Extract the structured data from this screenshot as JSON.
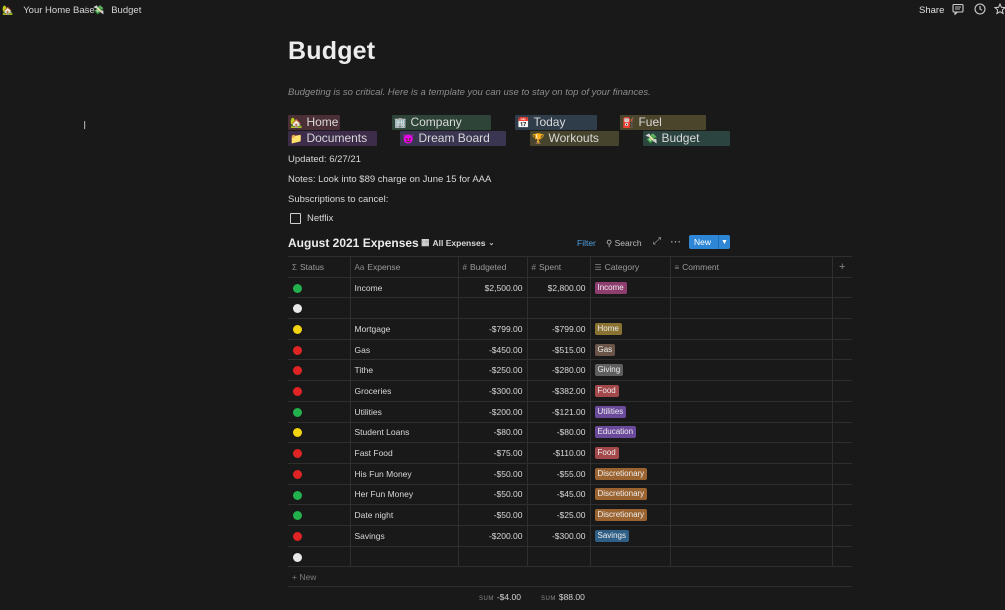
{
  "breadcrumb": {
    "home": {
      "icon": "🏡",
      "label": "Your Home Base"
    },
    "separator": "/",
    "current": {
      "icon": "💸",
      "label": "Budget"
    }
  },
  "topbar": {
    "share_label": "Share"
  },
  "page": {
    "title": "Budget",
    "description": "Budgeting is so critical. Here is a template you can use to stay on top of your finances.",
    "nav_links": [
      {
        "icon": "🏡",
        "label": "Home",
        "color": "#4a3036"
      },
      {
        "icon": "🏢",
        "label": "Company",
        "color": "#2e4438"
      },
      {
        "icon": "📅",
        "label": "Today",
        "color": "#2f3d4b"
      },
      {
        "icon": "⛽",
        "label": "Fuel",
        "color": "#4a452b"
      },
      {
        "icon": "📁",
        "label": "Documents",
        "color": "#3e2d4a"
      },
      {
        "icon": "😈",
        "label": "Dream Board",
        "color": "#3a3550"
      },
      {
        "icon": "🏆",
        "label": "Workouts",
        "color": "#46442c"
      },
      {
        "icon": "💸",
        "label": "Budget",
        "color": "#2c4440"
      }
    ],
    "updated": "Updated: 6/27/21",
    "notes": "Notes: Look into $89 charge on June 15 for AAA",
    "subscriptions_heading": "Subscriptions to cancel:",
    "todo_item": "Netflix"
  },
  "database": {
    "title": "August 2021 Expenses",
    "view_label": "All Expenses",
    "filter_label": "Filter",
    "search_label": "Search",
    "new_label": "New",
    "columns": {
      "status": "Status",
      "expense": "Expense",
      "budgeted": "Budgeted",
      "spent": "Spent",
      "category": "Category",
      "comment": "Comment"
    },
    "rows": [
      {
        "status": "#22b14c",
        "expense": "Income",
        "budgeted": "$2,500.00",
        "spent": "$2,800.00",
        "category": "Income",
        "category_color": "#8e3e6e"
      },
      {
        "status": "#e8e8e8",
        "expense": "",
        "budgeted": "",
        "spent": "",
        "category": "",
        "category_color": ""
      },
      {
        "status": "#f2d410",
        "expense": "Mortgage",
        "budgeted": "-$799.00",
        "spent": "-$799.00",
        "category": "Home",
        "category_color": "#8a7232"
      },
      {
        "status": "#e02424",
        "expense": "Gas",
        "budgeted": "-$450.00",
        "spent": "-$515.00",
        "category": "Gas",
        "category_color": "#6a5548"
      },
      {
        "status": "#e02424",
        "expense": "Tithe",
        "budgeted": "-$250.00",
        "spent": "-$280.00",
        "category": "Giving",
        "category_color": "#5f5f5f"
      },
      {
        "status": "#e02424",
        "expense": "Groceries",
        "budgeted": "-$300.00",
        "spent": "-$382.00",
        "category": "Food",
        "category_color": "#a3494b"
      },
      {
        "status": "#22b14c",
        "expense": "Utilities",
        "budgeted": "-$200.00",
        "spent": "-$121.00",
        "category": "Utilities",
        "category_color": "#6a4a9a"
      },
      {
        "status": "#f2d410",
        "expense": "Student Loans",
        "budgeted": "-$80.00",
        "spent": "-$80.00",
        "category": "Education",
        "category_color": "#6a4a9a"
      },
      {
        "status": "#e02424",
        "expense": "Fast Food",
        "budgeted": "-$75.00",
        "spent": "-$110.00",
        "category": "Food",
        "category_color": "#a3494b"
      },
      {
        "status": "#e02424",
        "expense": "His Fun Money",
        "budgeted": "-$50.00",
        "spent": "-$55.00",
        "category": "Discretionary",
        "category_color": "#9a6330"
      },
      {
        "status": "#22b14c",
        "expense": "Her Fun Money",
        "budgeted": "-$50.00",
        "spent": "-$45.00",
        "category": "Discretionary",
        "category_color": "#9a6330"
      },
      {
        "status": "#22b14c",
        "expense": "Date night",
        "budgeted": "-$50.00",
        "spent": "-$25.00",
        "category": "Discretionary",
        "category_color": "#9a6330"
      },
      {
        "status": "#e02424",
        "expense": "Savings",
        "budgeted": "-$200.00",
        "spent": "-$300.00",
        "category": "Savings",
        "category_color": "#2f5f86"
      },
      {
        "status": "#e8e8e8",
        "expense": "",
        "budgeted": "",
        "spent": "",
        "category": "",
        "category_color": ""
      }
    ],
    "add_new_label": "New",
    "sum_label": "SUM",
    "sum_budgeted": "-$4.00",
    "sum_spent": "$88.00"
  }
}
